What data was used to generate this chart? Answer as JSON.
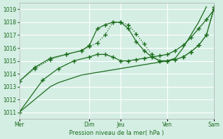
{
  "background_color": "#d4eee4",
  "grid_color": "#ffffff",
  "line_color": "#1a6b1a",
  "xlabel": "Pression niveau de la mer( hPa )",
  "yticks": [
    1011,
    1012,
    1013,
    1014,
    1015,
    1016,
    1017,
    1018,
    1019
  ],
  "ylim": [
    1010.5,
    1019.5
  ],
  "xtick_labels": [
    "Mer",
    "Dim",
    "Jeu",
    "Ven",
    "Sam"
  ],
  "xtick_positions": [
    0,
    9,
    13,
    19,
    25
  ],
  "xlim": [
    0,
    25
  ],
  "series1_x": [
    0,
    1,
    2,
    3,
    4,
    5,
    6,
    7,
    8,
    9,
    10,
    11,
    12,
    13,
    14,
    15,
    16,
    17,
    18,
    19,
    20,
    21,
    22,
    23,
    24
  ],
  "series1_y": [
    1011.0,
    1011.5,
    1012.0,
    1012.5,
    1013.0,
    1013.3,
    1013.5,
    1013.7,
    1013.9,
    1014.0,
    1014.1,
    1014.2,
    1014.3,
    1014.4,
    1014.5,
    1014.6,
    1014.7,
    1014.8,
    1014.9,
    1015.0,
    1015.2,
    1016.0,
    1017.0,
    1018.0,
    1019.2
  ],
  "series2_x": [
    0,
    3,
    5,
    7,
    9,
    10,
    11,
    12,
    13,
    14,
    15,
    16,
    17,
    18,
    19,
    20,
    21,
    22,
    23,
    24,
    25
  ],
  "series2_y": [
    1011.0,
    1013.5,
    1014.4,
    1015.0,
    1015.3,
    1015.5,
    1015.5,
    1015.3,
    1015.0,
    1015.0,
    1015.1,
    1015.2,
    1015.3,
    1015.4,
    1015.5,
    1015.8,
    1016.2,
    1016.8,
    1017.5,
    1018.2,
    1019.0
  ],
  "series3_x": [
    0,
    2,
    4,
    6,
    8,
    9,
    10,
    11,
    12,
    13,
    14,
    15,
    16,
    17,
    18,
    19,
    20,
    21,
    22,
    23,
    24,
    25
  ],
  "series3_y": [
    1013.4,
    1014.4,
    1015.1,
    1015.5,
    1015.8,
    1016.1,
    1016.4,
    1017.0,
    1018.0,
    1018.0,
    1017.8,
    1017.1,
    1016.3,
    1015.5,
    1015.0,
    1015.0,
    1015.1,
    1015.3,
    1015.7,
    1016.2,
    1017.0,
    1019.0
  ],
  "series4_x": [
    0,
    2,
    4,
    6,
    8,
    9,
    10,
    11,
    12,
    13,
    14,
    15,
    16,
    17,
    18,
    19,
    20,
    21,
    22,
    23,
    24,
    25
  ],
  "series4_y": [
    1013.4,
    1014.5,
    1015.2,
    1015.5,
    1015.8,
    1016.2,
    1017.5,
    1017.8,
    1018.0,
    1018.0,
    1017.5,
    1016.5,
    1015.8,
    1015.3,
    1015.0,
    1015.0,
    1015.1,
    1015.3,
    1015.7,
    1016.2,
    1017.0,
    1019.2
  ]
}
